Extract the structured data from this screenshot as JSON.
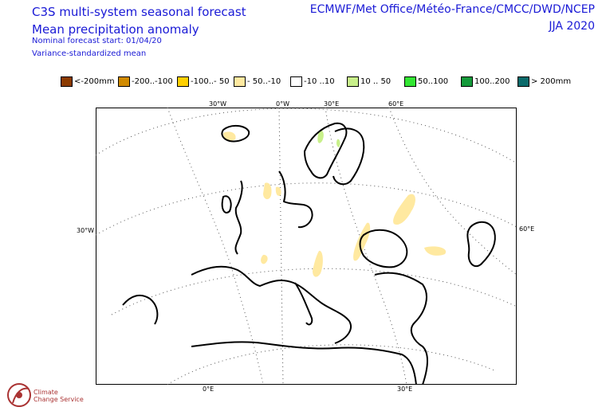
{
  "header": {
    "title_line1": "C3S multi-system seasonal forecast",
    "title_line2": "Mean precipitation anomaly",
    "sub_line1": "Nominal forecast start: 01/04/20",
    "sub_line2": "Variance-standardized mean",
    "providers": "ECMWF/Met Office/Météo-France/CMCC/DWD/NCEP",
    "season": "JJA 2020"
  },
  "legend": [
    {
      "label": "<-200mm",
      "color": "#8b3a00"
    },
    {
      "label": "-200..-100",
      "color": "#d08a00"
    },
    {
      "label": "-100..- 50",
      "color": "#ffd000"
    },
    {
      "label": "- 50..-10",
      "color": "#ffe9a0"
    },
    {
      "label": "-10 ..10",
      "color": "#ffffff"
    },
    {
      "label": "10 .. 50",
      "color": "#c8f08a"
    },
    {
      "label": "50..100",
      "color": "#33e633"
    },
    {
      "label": "100..200",
      "color": "#149a3a"
    },
    {
      "label": "> 200mm",
      "color": "#0a6a6a"
    }
  ],
  "axes": {
    "top": [
      "30°W",
      "0°W",
      "30°E",
      "60°E"
    ],
    "left": "30°W",
    "right": "60°E",
    "bottom": [
      "0°E",
      "30°E"
    ]
  },
  "logo": {
    "line1": "Climate",
    "line2": "Change Service"
  }
}
